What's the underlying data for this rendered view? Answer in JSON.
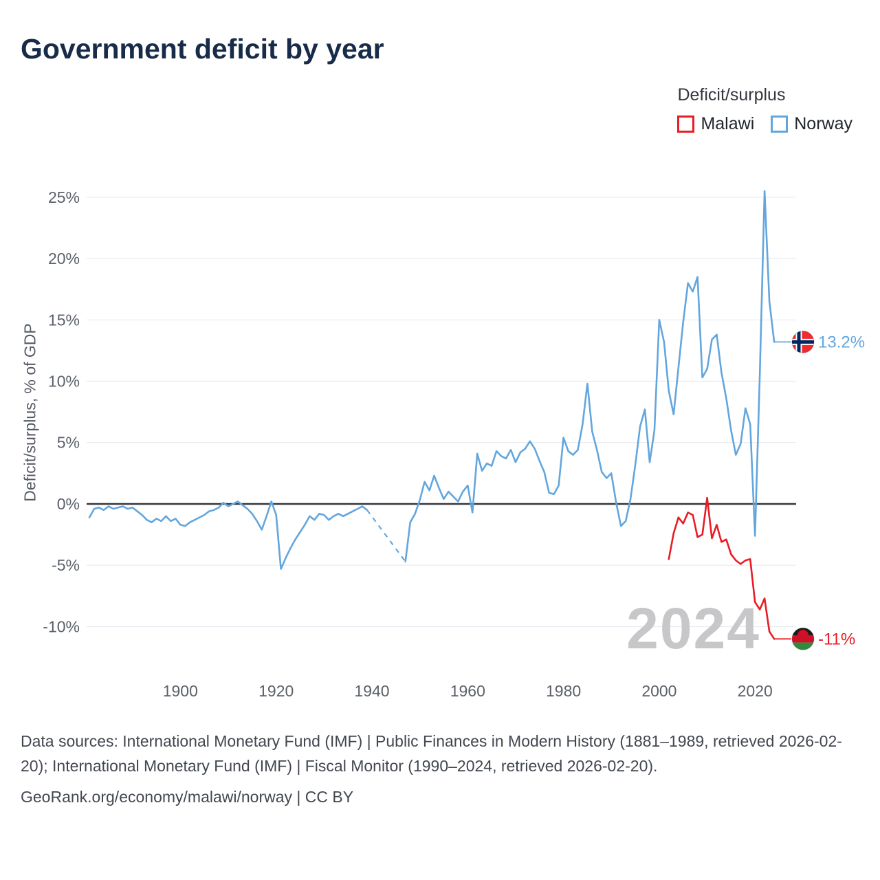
{
  "title": "Government deficit by year",
  "legend": {
    "heading": "Deficit/surplus",
    "items": [
      {
        "label": "Malawi",
        "color": "#e81c24"
      },
      {
        "label": "Norway",
        "color": "#63a6de"
      }
    ]
  },
  "flags": {
    "norway": {
      "red": "#ee2b2e",
      "white": "#ffffff",
      "blue": "#00265f"
    },
    "malawi": {
      "black": "#1b1b1b",
      "red": "#ce1126",
      "green": "#2e8b3d"
    }
  },
  "chart_data": {
    "type": "line",
    "title": "Government deficit by year",
    "xlabel": "",
    "ylabel": "Deficit/surplus, % of GDP",
    "watermark": "2024",
    "xlim": [
      1881,
      2026
    ],
    "ylim": [
      -13,
      26.5
    ],
    "x_ticks": [
      1900,
      1920,
      1940,
      1960,
      1980,
      2000,
      2020
    ],
    "y_ticks": [
      -10,
      -5,
      0,
      5,
      10,
      15,
      20,
      25
    ],
    "grid": "horizontal",
    "legend_position": "top-right",
    "series": [
      {
        "name": "Norway",
        "color": "#63a6de",
        "flag": "norway",
        "end_label": "13.2%",
        "dash_gaps": [
          [
            1939,
            1947
          ]
        ],
        "points": [
          [
            1881,
            -1.1
          ],
          [
            1882,
            -0.4
          ],
          [
            1883,
            -0.3
          ],
          [
            1884,
            -0.5
          ],
          [
            1885,
            -0.2
          ],
          [
            1886,
            -0.4
          ],
          [
            1887,
            -0.3
          ],
          [
            1888,
            -0.2
          ],
          [
            1889,
            -0.4
          ],
          [
            1890,
            -0.3
          ],
          [
            1891,
            -0.6
          ],
          [
            1892,
            -0.9
          ],
          [
            1893,
            -1.3
          ],
          [
            1894,
            -1.5
          ],
          [
            1895,
            -1.2
          ],
          [
            1896,
            -1.4
          ],
          [
            1897,
            -1.0
          ],
          [
            1898,
            -1.4
          ],
          [
            1899,
            -1.2
          ],
          [
            1900,
            -1.7
          ],
          [
            1901,
            -1.8
          ],
          [
            1902,
            -1.5
          ],
          [
            1903,
            -1.3
          ],
          [
            1904,
            -1.1
          ],
          [
            1905,
            -0.9
          ],
          [
            1906,
            -0.6
          ],
          [
            1907,
            -0.5
          ],
          [
            1908,
            -0.3
          ],
          [
            1909,
            0.1
          ],
          [
            1910,
            -0.2
          ],
          [
            1911,
            0.0
          ],
          [
            1912,
            0.2
          ],
          [
            1913,
            -0.1
          ],
          [
            1914,
            -0.4
          ],
          [
            1915,
            -0.8
          ],
          [
            1916,
            -1.4
          ],
          [
            1917,
            -2.1
          ],
          [
            1918,
            -1.0
          ],
          [
            1919,
            0.2
          ],
          [
            1920,
            -0.9
          ],
          [
            1921,
            -5.3
          ],
          [
            1922,
            -4.4
          ],
          [
            1923,
            -3.6
          ],
          [
            1924,
            -2.9
          ],
          [
            1925,
            -2.3
          ],
          [
            1926,
            -1.7
          ],
          [
            1927,
            -1.0
          ],
          [
            1928,
            -1.3
          ],
          [
            1929,
            -0.8
          ],
          [
            1930,
            -0.9
          ],
          [
            1931,
            -1.3
          ],
          [
            1932,
            -1.0
          ],
          [
            1933,
            -0.8
          ],
          [
            1934,
            -1.0
          ],
          [
            1935,
            -0.8
          ],
          [
            1936,
            -0.6
          ],
          [
            1937,
            -0.4
          ],
          [
            1938,
            -0.2
          ],
          [
            1939,
            -0.5
          ],
          [
            1947,
            -4.7
          ],
          [
            1948,
            -1.5
          ],
          [
            1949,
            -0.8
          ],
          [
            1950,
            0.3
          ],
          [
            1951,
            1.8
          ],
          [
            1952,
            1.1
          ],
          [
            1953,
            2.3
          ],
          [
            1954,
            1.3
          ],
          [
            1955,
            0.4
          ],
          [
            1956,
            1.0
          ],
          [
            1957,
            0.6
          ],
          [
            1958,
            0.2
          ],
          [
            1959,
            1.0
          ],
          [
            1960,
            1.5
          ],
          [
            1961,
            -0.7
          ],
          [
            1962,
            4.1
          ],
          [
            1963,
            2.7
          ],
          [
            1964,
            3.3
          ],
          [
            1965,
            3.1
          ],
          [
            1966,
            4.3
          ],
          [
            1967,
            3.9
          ],
          [
            1968,
            3.7
          ],
          [
            1969,
            4.4
          ],
          [
            1970,
            3.4
          ],
          [
            1971,
            4.2
          ],
          [
            1972,
            4.5
          ],
          [
            1973,
            5.1
          ],
          [
            1974,
            4.5
          ],
          [
            1975,
            3.5
          ],
          [
            1976,
            2.6
          ],
          [
            1977,
            0.9
          ],
          [
            1978,
            0.8
          ],
          [
            1979,
            1.5
          ],
          [
            1980,
            5.4
          ],
          [
            1981,
            4.3
          ],
          [
            1982,
            4.0
          ],
          [
            1983,
            4.4
          ],
          [
            1984,
            6.5
          ],
          [
            1985,
            9.8
          ],
          [
            1986,
            5.9
          ],
          [
            1987,
            4.4
          ],
          [
            1988,
            2.6
          ],
          [
            1989,
            2.1
          ],
          [
            1990,
            2.5
          ],
          [
            1991,
            0.1
          ],
          [
            1992,
            -1.8
          ],
          [
            1993,
            -1.4
          ],
          [
            1994,
            0.4
          ],
          [
            1995,
            3.2
          ],
          [
            1996,
            6.3
          ],
          [
            1997,
            7.7
          ],
          [
            1998,
            3.4
          ],
          [
            1999,
            6.0
          ],
          [
            2000,
            15.0
          ],
          [
            2001,
            13.2
          ],
          [
            2002,
            9.2
          ],
          [
            2003,
            7.3
          ],
          [
            2004,
            11.1
          ],
          [
            2005,
            14.8
          ],
          [
            2006,
            18.0
          ],
          [
            2007,
            17.3
          ],
          [
            2008,
            18.5
          ],
          [
            2009,
            10.3
          ],
          [
            2010,
            11.0
          ],
          [
            2011,
            13.4
          ],
          [
            2012,
            13.8
          ],
          [
            2013,
            10.7
          ],
          [
            2014,
            8.6
          ],
          [
            2015,
            6.0
          ],
          [
            2016,
            4.0
          ],
          [
            2017,
            4.9
          ],
          [
            2018,
            7.8
          ],
          [
            2019,
            6.5
          ],
          [
            2020,
            -2.6
          ],
          [
            2021,
            10.6
          ],
          [
            2022,
            25.5
          ],
          [
            2023,
            16.5
          ],
          [
            2024,
            13.2
          ]
        ]
      },
      {
        "name": "Malawi",
        "color": "#e81c24",
        "flag": "malawi",
        "end_label": "-11%",
        "points": [
          [
            2002,
            -4.5
          ],
          [
            2003,
            -2.4
          ],
          [
            2004,
            -1.1
          ],
          [
            2005,
            -1.6
          ],
          [
            2006,
            -0.7
          ],
          [
            2007,
            -0.9
          ],
          [
            2008,
            -2.7
          ],
          [
            2009,
            -2.5
          ],
          [
            2010,
            0.5
          ],
          [
            2011,
            -2.8
          ],
          [
            2012,
            -1.7
          ],
          [
            2013,
            -3.1
          ],
          [
            2014,
            -2.9
          ],
          [
            2015,
            -4.1
          ],
          [
            2016,
            -4.6
          ],
          [
            2017,
            -4.9
          ],
          [
            2018,
            -4.6
          ],
          [
            2019,
            -4.5
          ],
          [
            2020,
            -8.0
          ],
          [
            2021,
            -8.6
          ],
          [
            2022,
            -7.7
          ],
          [
            2023,
            -10.4
          ],
          [
            2024,
            -11.0
          ]
        ]
      }
    ]
  },
  "footer": {
    "sources": "Data sources: International Monetary Fund (IMF) | Public Finances in Modern History (1881–1989, retrieved 2026-02-20); International Monetary Fund (IMF) | Fiscal Monitor (1990–2024, retrieved 2026-02-20).",
    "credit": "GeoRank.org/economy/malawi/norway | CC BY"
  }
}
